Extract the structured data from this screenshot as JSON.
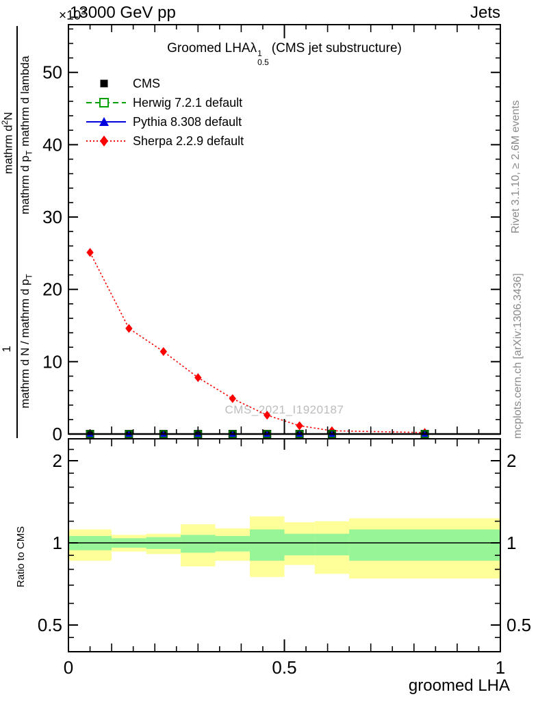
{
  "header": {
    "scale_pre": "×10",
    "scale_exp": "3",
    "energy": "13000 GeV pp",
    "right": "Jets"
  },
  "title": {
    "pre": "Groomed LHA",
    "sym": "λ",
    "sup": "1",
    "sub": "0.5",
    "post": "(CMS jet substructure)"
  },
  "ylabel": {
    "num_1": "1",
    "num_2_pre": "mathrm d",
    "num_2_sup": "2",
    "num_2_post": "N",
    "den_1_pre": "mathrm d N / mathrm d p",
    "den_1_sub": "T",
    "den_2_pre": "mathrm d p",
    "den_2_sub": "T",
    "den_2_post": "mathrm d lambda"
  },
  "xlabel": "groomed LHA",
  "ratio_ylabel": "Ratio to CMS",
  "watermark": "CMS_2021_I1920187",
  "notes": {
    "rivet": "Rivet 3.1.10, ≥ 2.6M events",
    "mcplots": "mcplots.cern.ch [arXiv:1306.3436]"
  },
  "chart_data": {
    "type": "line",
    "title": "Groomed LHA lambda^1_0.5 (CMS jet substructure)",
    "xlabel": "groomed LHA",
    "ylabel": "1/(mathrm dN/mathrm dp_T) mathrm d2N/(mathrm dp_T mathrm dlambda)",
    "y_scale_note": "×10^3",
    "xlim": [
      0,
      1
    ],
    "legend_position": "top-left",
    "grid": false,
    "main": {
      "ylim": [
        0,
        56.6
      ],
      "y_major_ticks": [
        0,
        10,
        20,
        30,
        40,
        50
      ],
      "y_major_tick_labels": [
        "0",
        "10",
        "20",
        "30",
        "40",
        "50"
      ],
      "y_minor_step": 2,
      "x_major_ticks": [
        0,
        0.5,
        1
      ],
      "x_major_tick_labels": [
        "0",
        "0.5",
        "1"
      ],
      "x_mid_step": 0.1,
      "x_minor_step": 0.05
    },
    "bin_edges": [
      0,
      0.1,
      0.18,
      0.26,
      0.34,
      0.42,
      0.5,
      0.57,
      0.65,
      1.0
    ],
    "bin_centers": [
      0.05,
      0.14,
      0.22,
      0.3,
      0.38,
      0.46,
      0.535,
      0.61,
      0.825
    ],
    "series": [
      {
        "name": "CMS",
        "color": "#000000",
        "marker": "square-filled",
        "line": "none",
        "x": [
          0.05,
          0.14,
          0.22,
          0.3,
          0.38,
          0.46,
          0.535,
          0.61,
          0.825
        ],
        "y": [
          0.2,
          0.2,
          0.2,
          0.2,
          0.2,
          0.2,
          0.2,
          0.2,
          0.2
        ]
      },
      {
        "name": "Herwig 7.2.1 default",
        "color": "#00a000",
        "marker": "square-open",
        "line": "dashed",
        "x": [
          0.05,
          0.14,
          0.22,
          0.3,
          0.38,
          0.46,
          0.535,
          0.61,
          0.825
        ],
        "y": [
          0.2,
          0.2,
          0.2,
          0.2,
          0.2,
          0.2,
          0.2,
          0.2,
          0.2
        ]
      },
      {
        "name": "Pythia 8.308 default",
        "color": "#0000e0",
        "marker": "triangle-filled",
        "line": "solid",
        "x": [
          0.05,
          0.14,
          0.22,
          0.3,
          0.38,
          0.46,
          0.535,
          0.61,
          0.825
        ],
        "y": [
          0.2,
          0.2,
          0.2,
          0.2,
          0.2,
          0.2,
          0.2,
          0.2,
          0.2
        ]
      },
      {
        "name": "Sherpa 2.2.9 default",
        "color": "#ff0000",
        "marker": "diamond-filled",
        "line": "dotted",
        "x": [
          0.05,
          0.14,
          0.22,
          0.3,
          0.38,
          0.46,
          0.535,
          0.61,
          0.825
        ],
        "y": [
          25.1,
          14.6,
          11.4,
          7.8,
          4.9,
          2.6,
          1.15,
          0.45,
          0.2
        ]
      }
    ],
    "ratio": {
      "ylabel": "Ratio to CMS",
      "scale": "log",
      "ylim": [
        0.4,
        2.42
      ],
      "reference_line": 1.0,
      "y_major_ticks": [
        0.5,
        1,
        2
      ],
      "y_major_tick_labels": [
        "0.5",
        "1",
        "2"
      ],
      "y_minor_ticks": [
        0.45,
        0.5,
        0.6,
        0.7,
        0.8,
        0.9,
        1.0,
        1.2,
        1.4,
        1.6,
        1.8,
        2.0,
        2.2,
        2.4
      ],
      "band_yellow_color": "#ffff99",
      "band_green_color": "#97f597",
      "band_yellow_hi": [
        1.12,
        1.07,
        1.08,
        1.17,
        1.13,
        1.25,
        1.19,
        1.2,
        1.23
      ],
      "band_yellow_lo": [
        0.86,
        0.93,
        0.91,
        0.82,
        0.86,
        0.75,
        0.83,
        0.77,
        0.74
      ],
      "band_green_hi": [
        1.06,
        1.04,
        1.05,
        1.07,
        1.06,
        1.12,
        1.08,
        1.08,
        1.12
      ],
      "band_green_lo": [
        0.94,
        0.96,
        0.95,
        0.92,
        0.93,
        0.86,
        0.9,
        0.9,
        0.86
      ]
    }
  }
}
